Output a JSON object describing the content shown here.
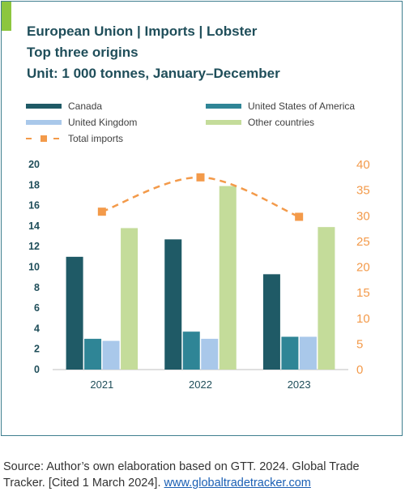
{
  "title_lines": [
    "European Union | Imports | Lobster",
    "Top three origins",
    "Unit: 1 000 tonnes, January–December"
  ],
  "legend": [
    {
      "label": "Canada",
      "color": "#1f5a66"
    },
    {
      "label": "United States of America",
      "color": "#2f8596"
    },
    {
      "label": "United Kingdom",
      "color": "#a9c8ea"
    },
    {
      "label": "Other countries",
      "color": "#c4dc9a"
    },
    {
      "label": "Total imports",
      "color": "#f39a4a"
    }
  ],
  "chart_data": {
    "type": "bar",
    "categories": [
      "2021",
      "2022",
      "2023"
    ],
    "series": [
      {
        "name": "Canada",
        "values": [
          11.0,
          12.7,
          9.3
        ],
        "axis": "left",
        "color": "#1f5a66"
      },
      {
        "name": "United States of America",
        "values": [
          3.0,
          3.7,
          3.2
        ],
        "axis": "left",
        "color": "#2f8596"
      },
      {
        "name": "United Kingdom",
        "values": [
          2.8,
          3.0,
          3.2
        ],
        "axis": "left",
        "color": "#a9c8ea"
      },
      {
        "name": "Other countries",
        "values": [
          13.8,
          17.9,
          13.9
        ],
        "axis": "left",
        "color": "#c4dc9a"
      },
      {
        "name": "Total imports",
        "type": "line",
        "values": [
          30.8,
          37.5,
          29.8
        ],
        "axis": "right",
        "color": "#f39a4a"
      }
    ],
    "y_left": {
      "min": 0,
      "max": 20,
      "ticks": [
        "0",
        "2",
        "4",
        "6",
        "8",
        "10",
        "12",
        "14",
        "16",
        "18",
        "20"
      ],
      "color": "#1f4e5a"
    },
    "y_right": {
      "min": 0,
      "max": 40,
      "ticks": [
        "0",
        "5",
        "10",
        "15",
        "20",
        "25",
        "30",
        "35",
        "40"
      ],
      "color": "#f39a4a"
    },
    "grid": false,
    "legend_position": "top"
  },
  "source": {
    "text": "Source: Author’s own elaboration based on GTT. 2024. Global Trade Tracker. [Cited 1 March 2024]. ",
    "link": "www.globaltradetracker.com"
  }
}
